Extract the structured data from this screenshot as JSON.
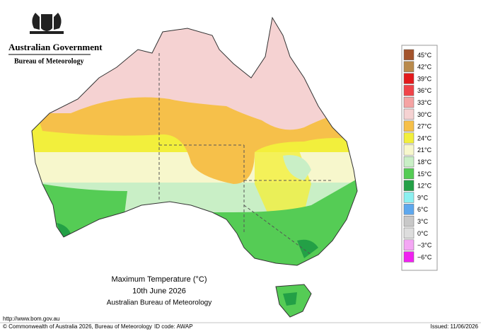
{
  "header": {
    "government": "Australian Government",
    "bureau": "Bureau of Meteorology"
  },
  "legend": [
    {
      "label": "45°C",
      "color": "#a3532b"
    },
    {
      "label": "42°C",
      "color": "#b98a4c"
    },
    {
      "label": "39°C",
      "color": "#e31a1c"
    },
    {
      "label": "36°C",
      "color": "#f0444a"
    },
    {
      "label": "33°C",
      "color": "#f5a3a3"
    },
    {
      "label": "30°C",
      "color": "#f5d2d2"
    },
    {
      "label": "27°C",
      "color": "#f6c04a"
    },
    {
      "label": "24°C",
      "color": "#f2ef3c"
    },
    {
      "label": "21°C",
      "color": "#f7f7cc"
    },
    {
      "label": "18°C",
      "color": "#c9efc6"
    },
    {
      "label": "15°C",
      "color": "#55cc55"
    },
    {
      "label": "12°C",
      "color": "#23a046"
    },
    {
      "label": "9°C",
      "color": "#8cf0f0"
    },
    {
      "label": "6°C",
      "color": "#5ea8ee"
    },
    {
      "label": "3°C",
      "color": "#c8c8c8"
    },
    {
      "label": "0°C",
      "color": "#dddddd"
    },
    {
      "label": "−3°C",
      "color": "#f4a6f4"
    },
    {
      "label": "−6°C",
      "color": "#f022f0"
    }
  ],
  "title": {
    "lines": [
      "Maximum Temperature (°C)",
      "10th June 2026",
      "Australian Bureau of Meteorology"
    ]
  },
  "footer": {
    "url": "http://www.bom.gov.au",
    "copyright": "© Commonwealth of Australia 2026, Bureau of Meteorology",
    "id_code": "ID code: AWAP",
    "issued": "Issued: 11/06/2026"
  }
}
